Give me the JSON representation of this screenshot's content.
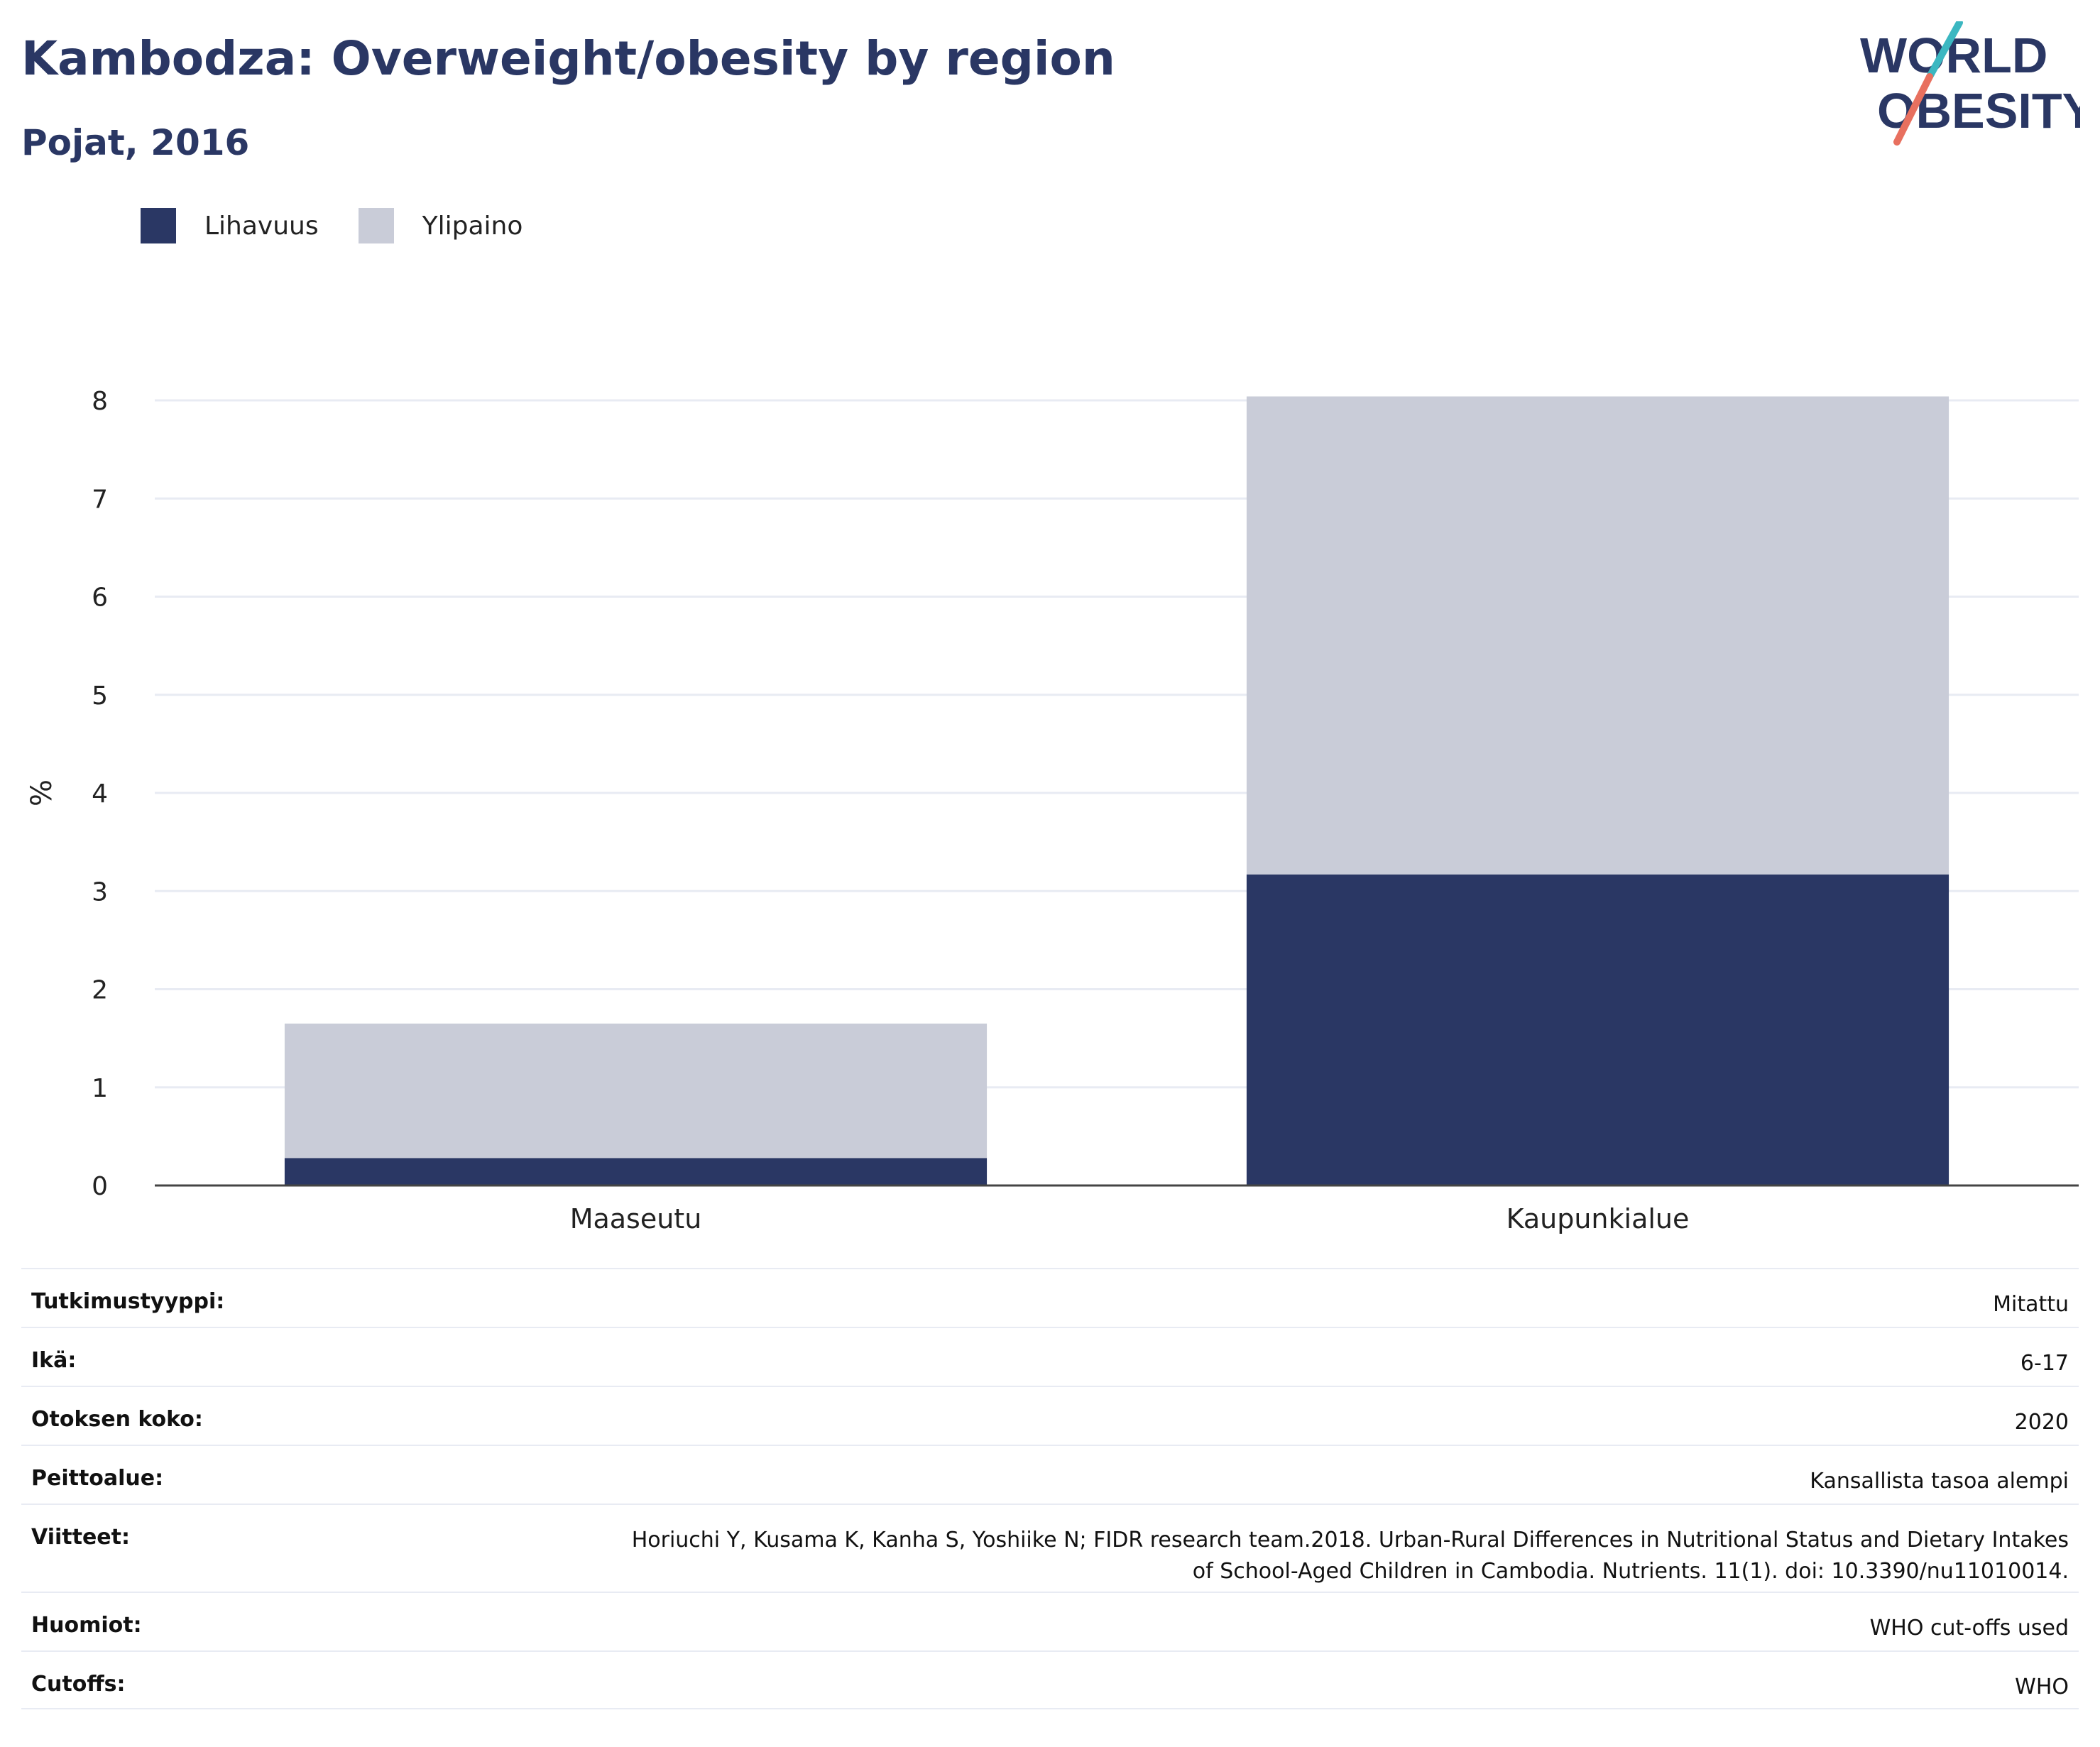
{
  "header": {
    "title": "Kambodza: Overweight/obesity by region",
    "subtitle": "Pojat, 2016"
  },
  "logo": {
    "line1": "WORLD",
    "line2": "OBESITY",
    "colors": {
      "text": "#2a3764",
      "slash_top": "#3bb7c1",
      "slash_bottom": "#e8705f"
    }
  },
  "legend": [
    {
      "label": "Lihavuus",
      "color": "#2a3764"
    },
    {
      "label": "Ylipaino",
      "color": "#c9ccd8"
    }
  ],
  "chart_data": {
    "type": "bar",
    "stacked": true,
    "categories": [
      "Maaseutu",
      "Kaupunkialue"
    ],
    "series": [
      {
        "name": "Lihavuus",
        "values": [
          0.28,
          3.17
        ],
        "color": "#2a3764"
      },
      {
        "name": "Ylipaino",
        "values": [
          1.37,
          4.87
        ],
        "color": "#c9ccd8"
      }
    ],
    "ylabel": "%",
    "ylim": [
      0,
      8
    ],
    "yticks": [
      "0",
      "1",
      "2",
      "3",
      "4",
      "5",
      "6",
      "7",
      "8"
    ],
    "grid": true,
    "legend_position": "top-left"
  },
  "info": [
    {
      "key": "Tutkimustyyppi:",
      "value": "Mitattu"
    },
    {
      "key": "Ikä:",
      "value": "6-17"
    },
    {
      "key": "Otoksen koko:",
      "value": "2020"
    },
    {
      "key": "Peittoalue:",
      "value": "Kansallista tasoa alempi"
    },
    {
      "key": "Viitteet:",
      "value_lines": [
        "Horiuchi Y, Kusama K, Kanha S, Yoshiike N; FIDR research team.2018. Urban-Rural Differences in Nutritional Status and Dietary Intakes",
        "of School-Aged Children in Cambodia. Nutrients. 11(1). doi: 10.3390/nu11010014."
      ]
    },
    {
      "key": "Huomiot:",
      "value": "WHO cut-offs used"
    },
    {
      "key": "Cutoffs:",
      "value": "WHO"
    }
  ]
}
